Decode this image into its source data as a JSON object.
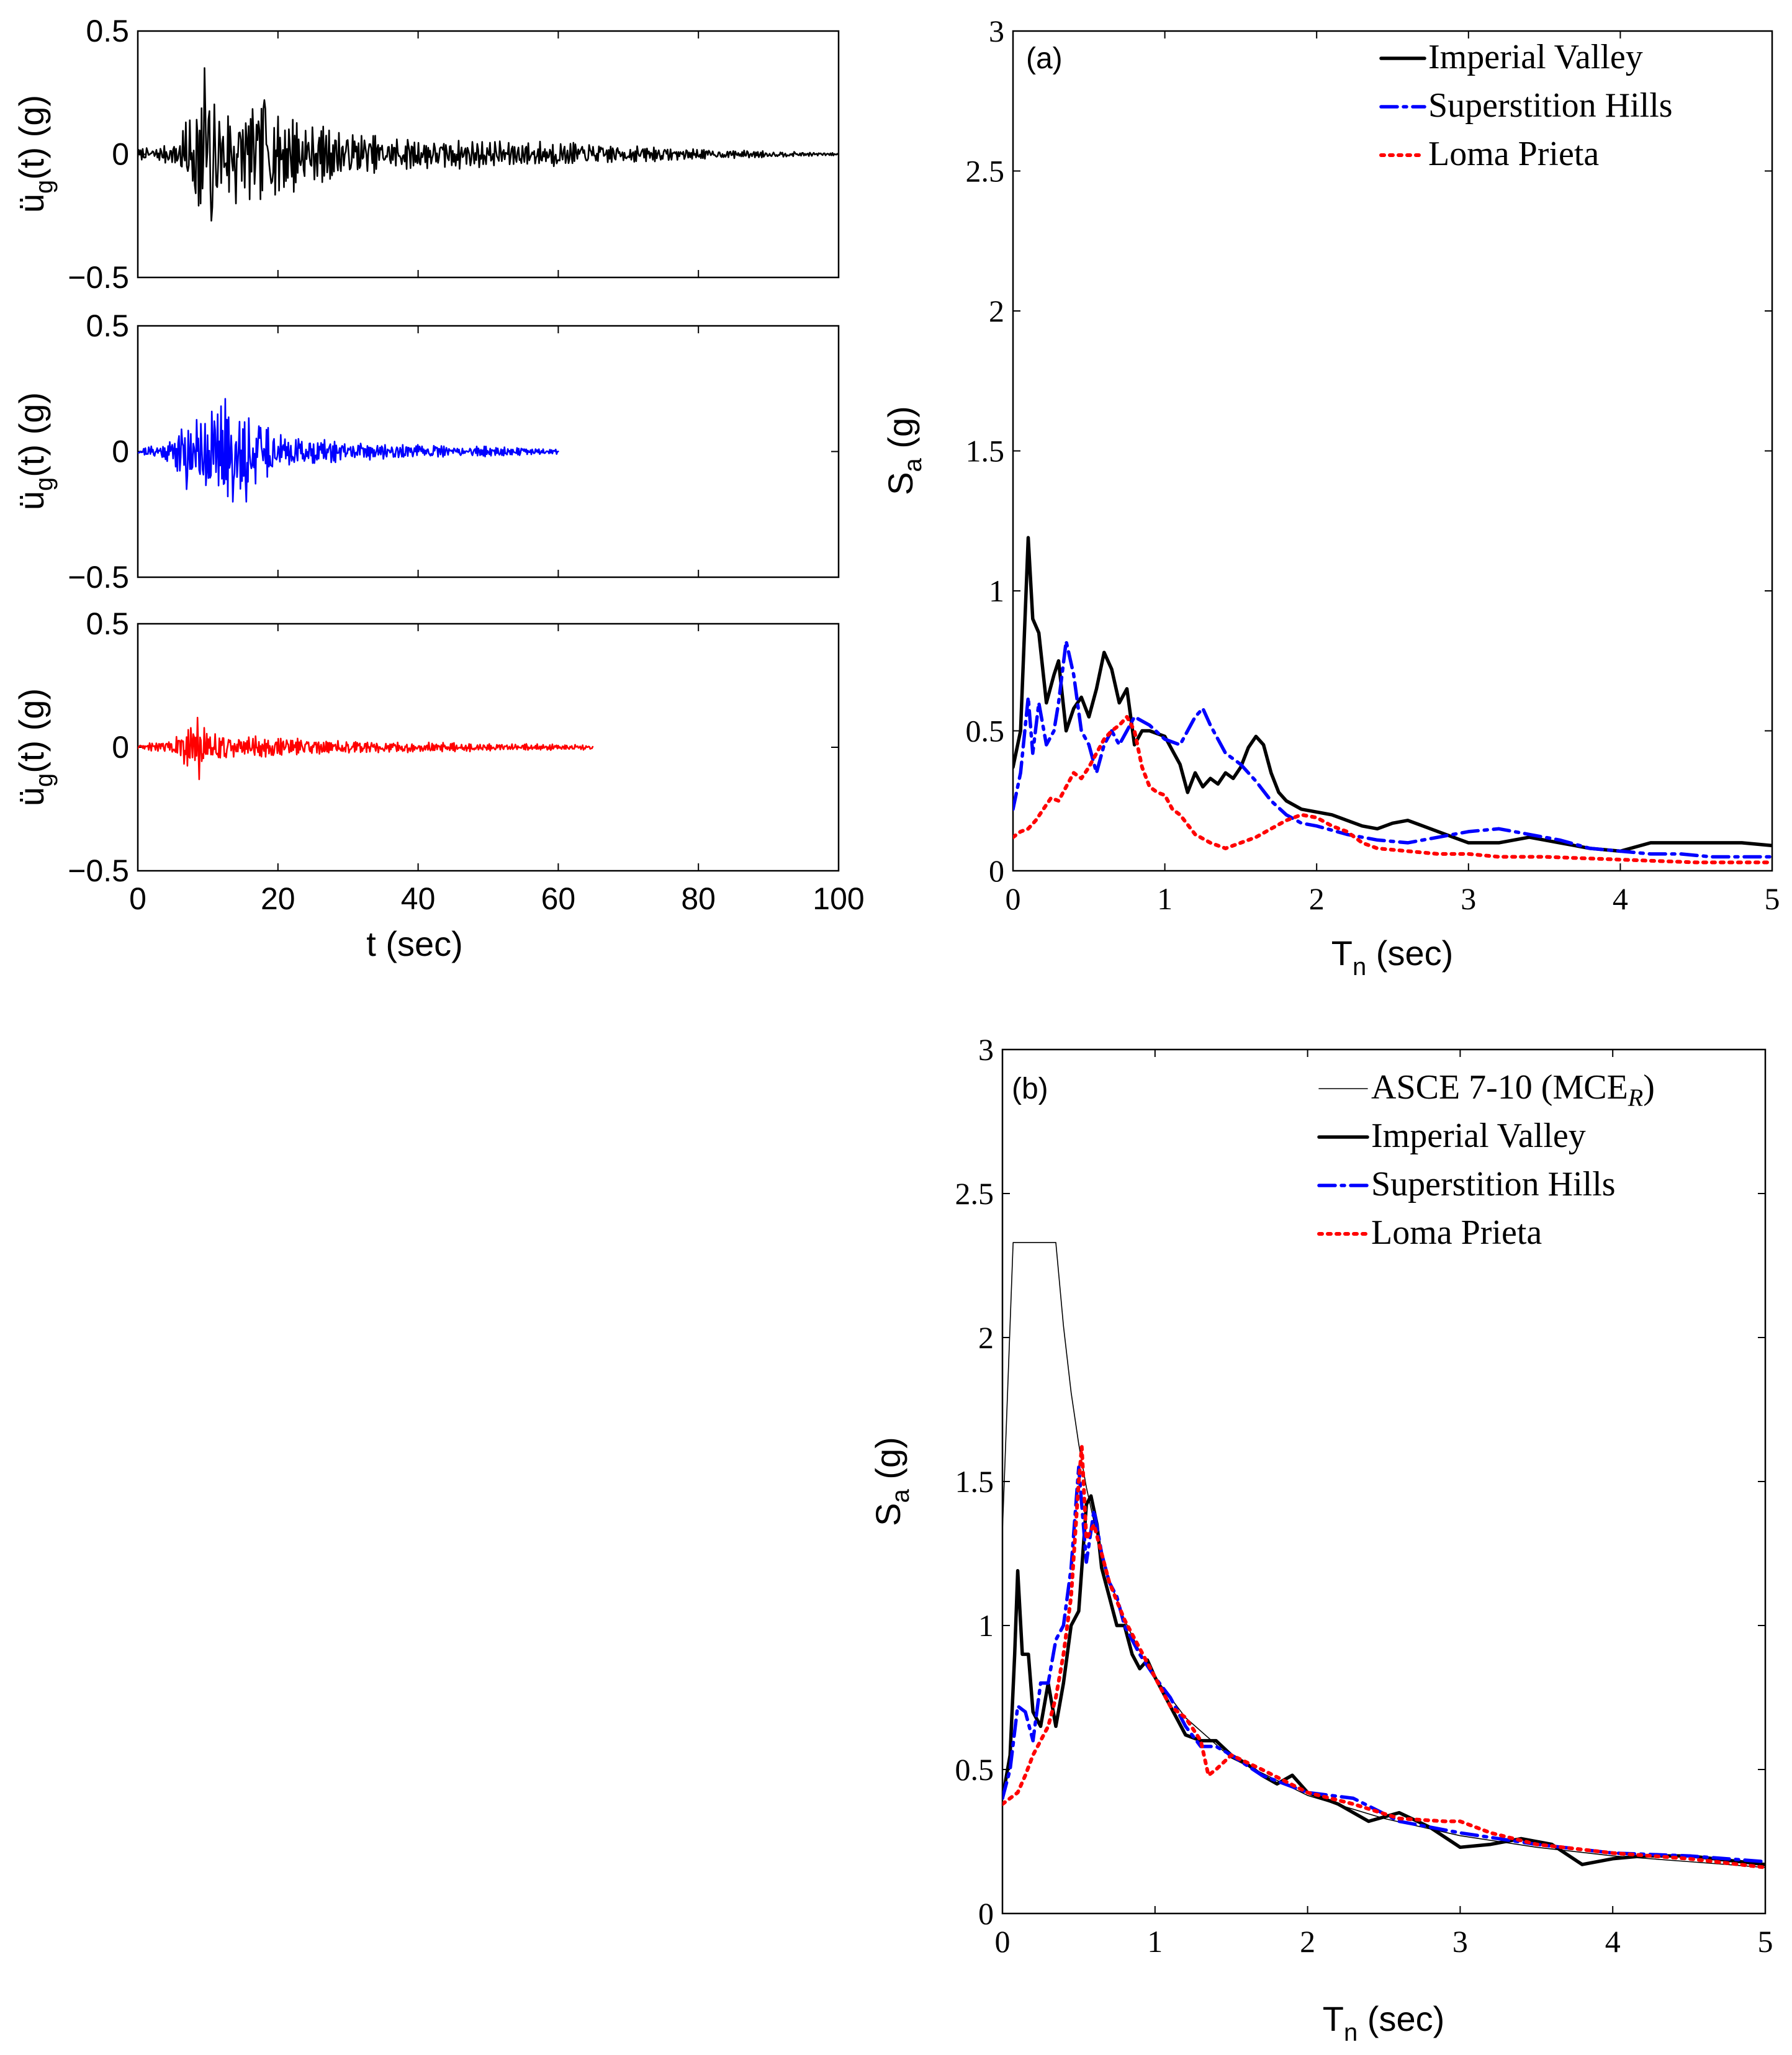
{
  "chart_data": [
    {
      "id": "ts-imperial",
      "type": "line",
      "title": "",
      "xlabel": "",
      "ylabel_main": "ü",
      "ylabel_sub": "g",
      "ylabel_tail": "(t) (g)",
      "xlim": [
        0,
        100
      ],
      "ylim": [
        -0.5,
        0.5
      ],
      "xticks": [
        0,
        20,
        40,
        60,
        80,
        100
      ],
      "xtick_labels": [
        "",
        "",
        "",
        "",
        "",
        ""
      ],
      "yticks": [
        -0.5,
        0,
        0.5
      ],
      "ytick_labels": [
        "−0.5",
        "0",
        "0.5"
      ],
      "series": [
        {
          "name": "Imperial Valley",
          "color": "#000000",
          "duration": 100,
          "envelope": [
            [
              0,
              0.02
            ],
            [
              5,
              0.04
            ],
            [
              6,
              0.1
            ],
            [
              8,
              0.2
            ],
            [
              9,
              0.35
            ],
            [
              12,
              0.2
            ],
            [
              20,
              0.18
            ],
            [
              25,
              0.12
            ],
            [
              35,
              0.07
            ],
            [
              45,
              0.06
            ],
            [
              60,
              0.05
            ],
            [
              80,
              0.02
            ],
            [
              100,
              0.005
            ]
          ],
          "peak_times": [
            [
              9.5,
              0.35
            ],
            [
              9.0,
              -0.2
            ],
            [
              10.5,
              -0.27
            ],
            [
              18,
              0.22
            ],
            [
              14,
              -0.2
            ]
          ],
          "dt": 0.14,
          "seed": 7
        }
      ]
    },
    {
      "id": "ts-superstition",
      "type": "line",
      "title": "",
      "xlabel": "",
      "ylabel_main": "ü",
      "ylabel_sub": "g",
      "ylabel_tail": "(t) (g)",
      "xlim": [
        0,
        100
      ],
      "ylim": [
        -0.5,
        0.5
      ],
      "xticks": [
        0,
        20,
        40,
        60,
        80,
        100
      ],
      "xtick_labels": [
        "",
        "",
        "",
        "",
        "",
        ""
      ],
      "yticks": [
        -0.5,
        0,
        0.5
      ],
      "ytick_labels": [
        "−0.5",
        "0",
        "0.5"
      ],
      "series": [
        {
          "name": "Superstition Hills",
          "color": "#0000ff",
          "duration": 60,
          "envelope": [
            [
              0,
              0.01
            ],
            [
              4,
              0.04
            ],
            [
              6,
              0.1
            ],
            [
              8,
              0.13
            ],
            [
              12,
              0.21
            ],
            [
              16,
              0.19
            ],
            [
              20,
              0.07
            ],
            [
              25,
              0.05
            ],
            [
              35,
              0.03
            ],
            [
              50,
              0.02
            ],
            [
              60,
              0.01
            ]
          ],
          "peak_times": [
            [
              12.5,
              0.21
            ],
            [
              13.5,
              -0.2
            ],
            [
              15.5,
              -0.2
            ],
            [
              7,
              -0.15
            ]
          ],
          "dt": 0.12,
          "seed": 21
        }
      ]
    },
    {
      "id": "ts-loma",
      "type": "line",
      "title": "",
      "xlabel": "t (sec)",
      "ylabel_main": "ü",
      "ylabel_sub": "g",
      "ylabel_tail": "(t) (g)",
      "xlim": [
        0,
        100
      ],
      "ylim": [
        -0.5,
        0.5
      ],
      "xticks": [
        0,
        20,
        40,
        60,
        80,
        100
      ],
      "xtick_labels": [
        "0",
        "20",
        "40",
        "60",
        "80",
        "100"
      ],
      "yticks": [
        -0.5,
        0,
        0.5
      ],
      "ytick_labels": [
        "−0.5",
        "0",
        "0.5"
      ],
      "series": [
        {
          "name": "Loma Prieta",
          "color": "#ff0000",
          "duration": 65,
          "envelope": [
            [
              0,
              0.01
            ],
            [
              5,
              0.03
            ],
            [
              7,
              0.08
            ],
            [
              8.5,
              0.12
            ],
            [
              10,
              0.08
            ],
            [
              14,
              0.05
            ],
            [
              20,
              0.04
            ],
            [
              30,
              0.025
            ],
            [
              45,
              0.018
            ],
            [
              65,
              0.01
            ]
          ],
          "peak_times": [
            [
              8.5,
              0.12
            ],
            [
              8.8,
              -0.13
            ]
          ],
          "dt": 0.12,
          "seed": 35
        }
      ]
    },
    {
      "id": "spectra-a",
      "type": "line",
      "title": "",
      "panel_label": "(a)",
      "xlabel_main": "T",
      "xlabel_sub": "n",
      "xlabel_tail": " (sec)",
      "ylabel_main": "S",
      "ylabel_sub": "a",
      "ylabel_tail": " (g)",
      "xlim": [
        0,
        5
      ],
      "ylim": [
        0,
        3
      ],
      "xticks": [
        0,
        1,
        2,
        3,
        4,
        5
      ],
      "xtick_labels": [
        "0",
        "1",
        "2",
        "3",
        "4",
        "5"
      ],
      "yticks": [
        0,
        0.5,
        1,
        1.5,
        2,
        2.5,
        3
      ],
      "ytick_labels": [
        "0",
        "0.5",
        "1",
        "1.5",
        "2",
        "2.5",
        "3"
      ],
      "legend_position": "top-right",
      "series": [
        {
          "name": "Imperial Valley",
          "color": "#000000",
          "style": "solid",
          "x": [
            0,
            0.05,
            0.1,
            0.13,
            0.17,
            0.22,
            0.27,
            0.3,
            0.35,
            0.4,
            0.45,
            0.5,
            0.55,
            0.6,
            0.65,
            0.7,
            0.75,
            0.8,
            0.85,
            0.9,
            1.0,
            1.05,
            1.1,
            1.15,
            1.2,
            1.25,
            1.3,
            1.35,
            1.4,
            1.45,
            1.5,
            1.55,
            1.6,
            1.65,
            1.7,
            1.75,
            1.8,
            1.9,
            2.0,
            2.1,
            2.2,
            2.3,
            2.4,
            2.5,
            2.6,
            2.7,
            2.8,
            2.9,
            3.0,
            3.2,
            3.4,
            3.6,
            3.8,
            4.0,
            4.2,
            4.4,
            4.6,
            4.8,
            5.0
          ],
          "y": [
            0.37,
            0.5,
            1.19,
            0.9,
            0.85,
            0.6,
            0.7,
            0.75,
            0.5,
            0.58,
            0.62,
            0.55,
            0.65,
            0.78,
            0.72,
            0.6,
            0.65,
            0.45,
            0.5,
            0.5,
            0.48,
            0.43,
            0.38,
            0.28,
            0.35,
            0.3,
            0.33,
            0.31,
            0.35,
            0.33,
            0.37,
            0.44,
            0.48,
            0.45,
            0.35,
            0.28,
            0.25,
            0.22,
            0.21,
            0.2,
            0.18,
            0.16,
            0.15,
            0.17,
            0.18,
            0.16,
            0.14,
            0.12,
            0.1,
            0.1,
            0.12,
            0.1,
            0.08,
            0.07,
            0.1,
            0.1,
            0.1,
            0.1,
            0.09
          ]
        },
        {
          "name": "Superstition Hills",
          "color": "#0000ff",
          "style": "dashdot",
          "x": [
            0,
            0.05,
            0.1,
            0.13,
            0.17,
            0.22,
            0.27,
            0.3,
            0.35,
            0.4,
            0.45,
            0.5,
            0.55,
            0.6,
            0.65,
            0.7,
            0.75,
            0.8,
            0.9,
            1.0,
            1.1,
            1.2,
            1.25,
            1.3,
            1.4,
            1.5,
            1.6,
            1.7,
            1.8,
            1.9,
            2.0,
            2.2,
            2.4,
            2.6,
            2.8,
            3.0,
            3.2,
            3.4,
            3.6,
            3.8,
            4.0,
            4.2,
            4.4,
            4.6,
            4.8,
            5.0
          ],
          "y": [
            0.22,
            0.35,
            0.62,
            0.42,
            0.6,
            0.45,
            0.5,
            0.6,
            0.82,
            0.7,
            0.5,
            0.45,
            0.35,
            0.45,
            0.5,
            0.45,
            0.5,
            0.55,
            0.52,
            0.47,
            0.45,
            0.55,
            0.58,
            0.52,
            0.42,
            0.38,
            0.32,
            0.25,
            0.2,
            0.17,
            0.16,
            0.13,
            0.11,
            0.1,
            0.12,
            0.14,
            0.15,
            0.13,
            0.11,
            0.08,
            0.07,
            0.06,
            0.06,
            0.05,
            0.05,
            0.05
          ]
        },
        {
          "name": "Loma Prieta",
          "color": "#ff0000",
          "style": "dotted",
          "x": [
            0,
            0.05,
            0.1,
            0.15,
            0.2,
            0.25,
            0.3,
            0.35,
            0.4,
            0.45,
            0.5,
            0.55,
            0.6,
            0.65,
            0.7,
            0.75,
            0.8,
            0.85,
            0.9,
            0.95,
            1.0,
            1.05,
            1.1,
            1.2,
            1.3,
            1.4,
            1.5,
            1.6,
            1.7,
            1.8,
            1.9,
            2.0,
            2.1,
            2.2,
            2.3,
            2.4,
            2.6,
            2.8,
            3.0,
            3.2,
            3.5,
            4.0,
            4.5,
            5.0
          ],
          "y": [
            0.12,
            0.14,
            0.15,
            0.18,
            0.22,
            0.26,
            0.25,
            0.3,
            0.35,
            0.33,
            0.37,
            0.42,
            0.47,
            0.5,
            0.52,
            0.55,
            0.5,
            0.37,
            0.3,
            0.28,
            0.27,
            0.22,
            0.2,
            0.13,
            0.1,
            0.08,
            0.1,
            0.12,
            0.15,
            0.18,
            0.2,
            0.19,
            0.16,
            0.14,
            0.1,
            0.08,
            0.07,
            0.06,
            0.06,
            0.05,
            0.05,
            0.04,
            0.03,
            0.03
          ]
        }
      ]
    },
    {
      "id": "spectra-b",
      "type": "line",
      "title": "",
      "panel_label": "(b)",
      "xlabel_main": "T",
      "xlabel_sub": "n",
      "xlabel_tail": " (sec)",
      "ylabel_main": "S",
      "ylabel_sub": "a",
      "ylabel_tail": " (g)",
      "xlim": [
        0,
        5
      ],
      "ylim": [
        0,
        3
      ],
      "xticks": [
        0,
        1,
        2,
        3,
        4,
        5
      ],
      "xtick_labels": [
        "0",
        "1",
        "2",
        "3",
        "4",
        "5"
      ],
      "yticks": [
        0,
        0.5,
        1,
        1.5,
        2,
        2.5,
        3
      ],
      "ytick_labels": [
        "0",
        "0.5",
        "1",
        "1.5",
        "2",
        "2.5",
        "3"
      ],
      "legend_position": "top-right",
      "series": [
        {
          "name": "ASCE 7-10 (MCE",
          "name_sub": "R",
          "name_tail": ")",
          "color": "#000000",
          "style": "thin",
          "x": [
            0,
            0.07,
            0.35,
            0.4,
            0.45,
            0.5,
            0.55,
            0.6,
            0.7,
            0.8,
            0.9,
            1.0,
            1.2,
            1.5,
            2.0,
            2.5,
            3.0,
            3.5,
            4.0,
            4.5,
            5.0
          ],
          "y": [
            1.33,
            2.33,
            2.33,
            2.04,
            1.81,
            1.63,
            1.48,
            1.36,
            1.16,
            1.02,
            0.91,
            0.82,
            0.68,
            0.54,
            0.41,
            0.33,
            0.27,
            0.23,
            0.2,
            0.18,
            0.16
          ]
        },
        {
          "name": "Imperial Valley",
          "color": "#000000",
          "style": "solid",
          "x": [
            0,
            0.05,
            0.08,
            0.1,
            0.13,
            0.17,
            0.2,
            0.25,
            0.3,
            0.35,
            0.4,
            0.45,
            0.5,
            0.55,
            0.58,
            0.62,
            0.65,
            0.7,
            0.75,
            0.8,
            0.85,
            0.9,
            0.95,
            1.0,
            1.1,
            1.2,
            1.3,
            1.4,
            1.5,
            1.6,
            1.7,
            1.8,
            1.9,
            2.0,
            2.2,
            2.4,
            2.6,
            2.8,
            3.0,
            3.2,
            3.4,
            3.6,
            3.8,
            4.0,
            4.2,
            4.5,
            5.0
          ],
          "y": [
            0.4,
            0.55,
            0.9,
            1.19,
            0.9,
            0.9,
            0.7,
            0.65,
            0.8,
            0.65,
            0.8,
            1.0,
            1.05,
            1.42,
            1.45,
            1.35,
            1.2,
            1.1,
            1.0,
            1.0,
            0.9,
            0.85,
            0.88,
            0.82,
            0.72,
            0.62,
            0.6,
            0.6,
            0.55,
            0.52,
            0.48,
            0.45,
            0.48,
            0.42,
            0.38,
            0.32,
            0.35,
            0.3,
            0.23,
            0.24,
            0.26,
            0.24,
            0.17,
            0.19,
            0.2,
            0.2,
            0.17
          ]
        },
        {
          "name": "Superstition Hills",
          "color": "#0000ff",
          "style": "dashdot",
          "x": [
            0,
            0.05,
            0.1,
            0.15,
            0.2,
            0.25,
            0.3,
            0.35,
            0.4,
            0.45,
            0.5,
            0.55,
            0.6,
            0.65,
            0.7,
            0.75,
            0.8,
            0.85,
            0.9,
            1.0,
            1.1,
            1.2,
            1.3,
            1.4,
            1.5,
            1.7,
            2.0,
            2.3,
            2.6,
            3.0,
            3.5,
            4.0,
            4.5,
            5.0
          ],
          "y": [
            0.4,
            0.5,
            0.72,
            0.7,
            0.6,
            0.8,
            0.8,
            0.95,
            1.0,
            1.2,
            1.55,
            1.22,
            1.4,
            1.25,
            1.15,
            1.1,
            1.0,
            0.95,
            0.9,
            0.82,
            0.75,
            0.65,
            0.58,
            0.58,
            0.55,
            0.48,
            0.42,
            0.4,
            0.32,
            0.28,
            0.24,
            0.21,
            0.2,
            0.18
          ]
        },
        {
          "name": "Loma Prieta",
          "color": "#ff0000",
          "style": "dotted",
          "x": [
            0,
            0.05,
            0.1,
            0.15,
            0.2,
            0.25,
            0.3,
            0.35,
            0.4,
            0.45,
            0.5,
            0.52,
            0.55,
            0.6,
            0.65,
            0.7,
            0.8,
            0.9,
            1.0,
            1.1,
            1.2,
            1.3,
            1.35,
            1.4,
            1.5,
            1.7,
            2.0,
            2.3,
            2.6,
            2.9,
            3.0,
            3.2,
            3.5,
            4.0,
            4.5,
            5.0
          ],
          "y": [
            0.38,
            0.4,
            0.42,
            0.48,
            0.55,
            0.6,
            0.65,
            0.75,
            0.9,
            1.1,
            1.5,
            1.62,
            1.3,
            1.35,
            1.25,
            1.15,
            1.02,
            0.92,
            0.82,
            0.72,
            0.68,
            0.6,
            0.48,
            0.5,
            0.55,
            0.5,
            0.42,
            0.38,
            0.33,
            0.32,
            0.32,
            0.28,
            0.24,
            0.21,
            0.19,
            0.16
          ]
        }
      ]
    }
  ]
}
